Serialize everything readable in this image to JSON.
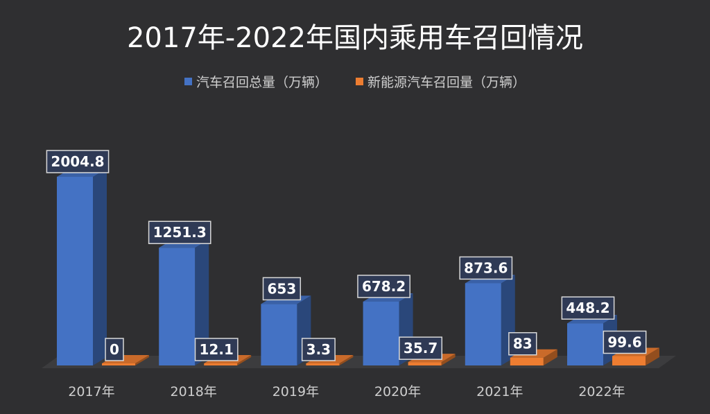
{
  "chart_data": {
    "type": "bar",
    "title": "2017年-2022年国内乘用车召回情况",
    "categories": [
      "2017年",
      "2018年",
      "2019年",
      "2020年",
      "2021年",
      "2022年"
    ],
    "series": [
      {
        "name": "汽车召回总量（万辆）",
        "color": "#4472c4",
        "values": [
          2004.8,
          1251.3,
          653,
          678.2,
          873.6,
          448.2
        ],
        "labels": [
          "2004.8",
          "1251.3",
          "653",
          "678.2",
          "873.6",
          "448.2"
        ]
      },
      {
        "name": "新能源汽车召回量（万辆）",
        "color": "#ed7d31",
        "values": [
          0,
          12.1,
          3.3,
          35.7,
          83,
          99.6
        ],
        "labels": [
          "0",
          "12.1",
          "3.3",
          "35.7",
          "83",
          "99.6"
        ]
      }
    ],
    "ylim": [
      0,
      2200
    ],
    "xlabel": "",
    "ylabel": "",
    "legend_position": "top-center",
    "grid": false,
    "style": "3d-columns"
  }
}
